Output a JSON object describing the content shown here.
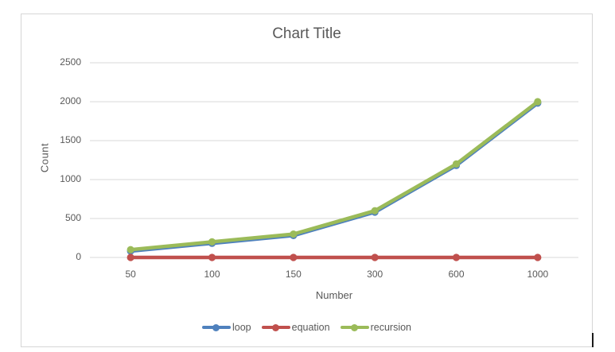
{
  "frame": {
    "background": "#ffffff",
    "border_color": "#d6d6d6"
  },
  "colors": {
    "text": "#595959",
    "gridline": "#d9d9d9"
  },
  "chart_data": {
    "type": "line",
    "title": "Chart Title",
    "xlabel": "Number",
    "ylabel": "Count",
    "categories": [
      "50",
      "100",
      "150",
      "300",
      "600",
      "1000"
    ],
    "y_ticks": [
      0,
      500,
      1000,
      1500,
      2000,
      2500
    ],
    "ylim": [
      0,
      2500
    ],
    "grid": true,
    "legend_position": "bottom",
    "marker": "circle",
    "series": [
      {
        "name": "loop",
        "color": "#4F81BD",
        "values": [
          100,
          200,
          300,
          600,
          1200,
          2000
        ]
      },
      {
        "name": "equation",
        "color": "#C0504D",
        "values": [
          0,
          0,
          0,
          0,
          0,
          0
        ]
      },
      {
        "name": "recursion",
        "color": "#9BBB59",
        "values": [
          100,
          200,
          300,
          600,
          1200,
          2000
        ]
      }
    ]
  }
}
